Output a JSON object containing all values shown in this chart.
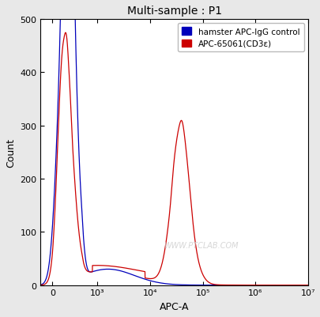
{
  "title": "Multi-sample : P1",
  "xlabel": "APC-A",
  "ylabel": "Count",
  "ylim": [
    0,
    500
  ],
  "background_color": "#e8e8e8",
  "plot_bg_color": "#ffffff",
  "legend_labels": [
    "hamster APC-IgG control",
    "APC-65061(CD3ε)"
  ],
  "legend_colors": [
    "#0000bb",
    "#cc0000"
  ],
  "watermark": "WWW.PTCLAB.COM",
  "yticks": [
    0,
    100,
    200,
    300,
    400,
    500
  ],
  "linthresh": 500,
  "linscale": 0.5
}
